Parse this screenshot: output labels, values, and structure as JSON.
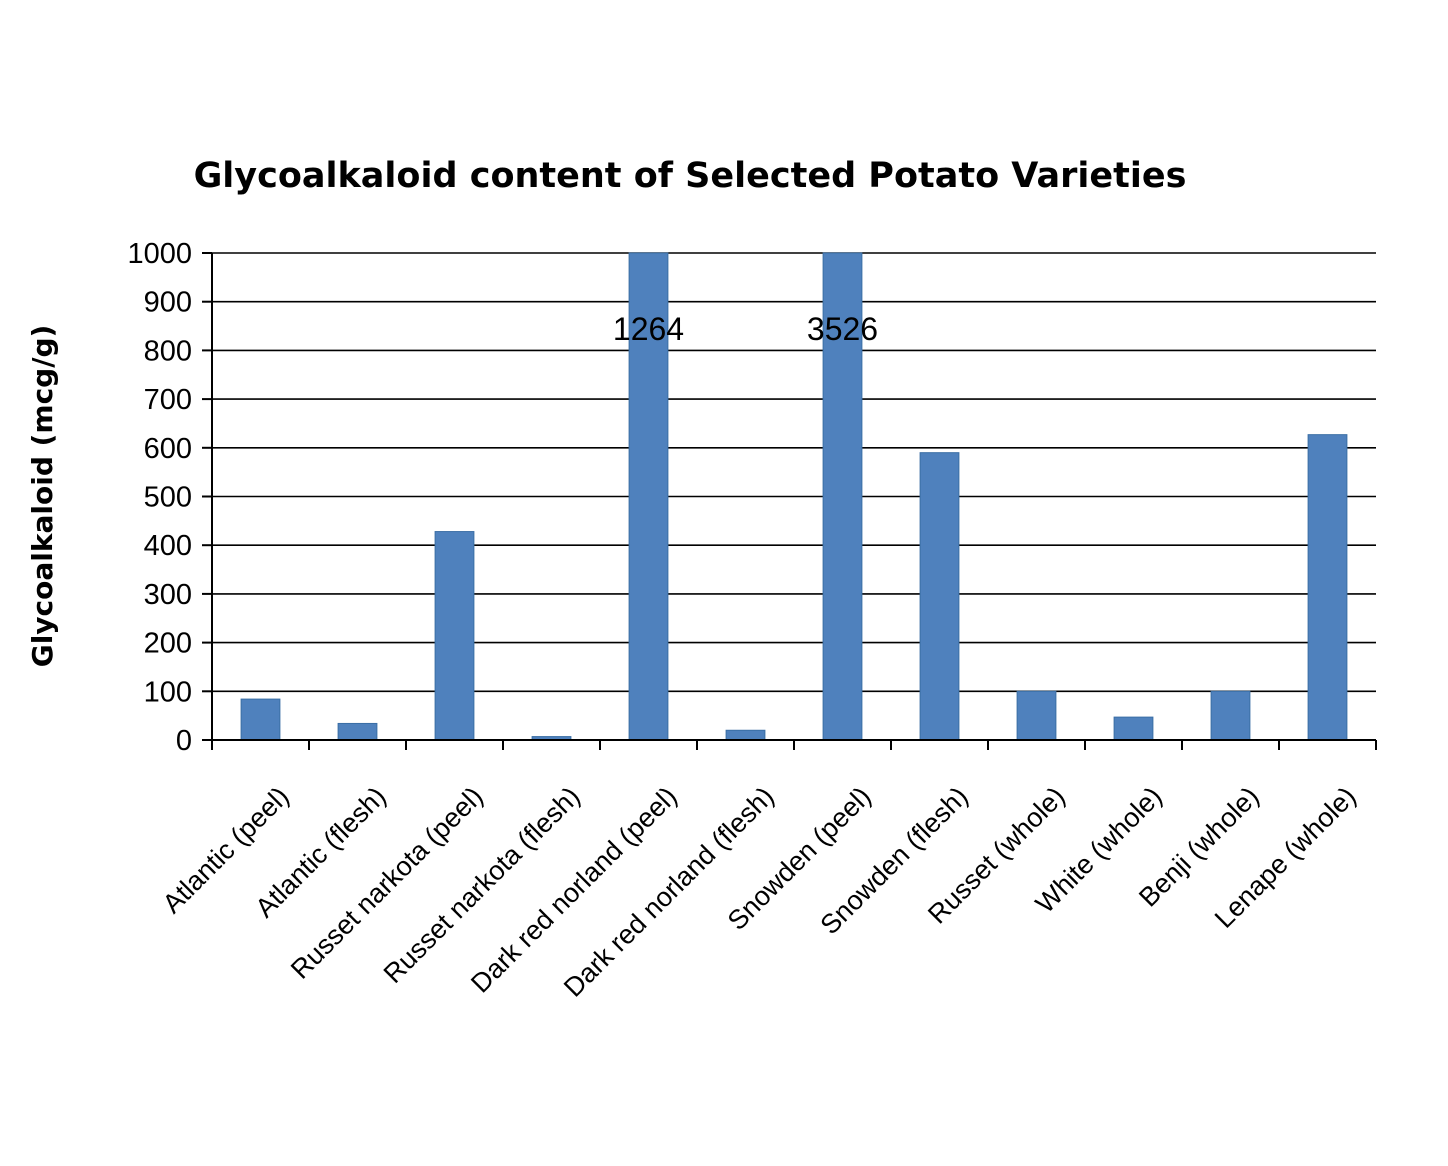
{
  "chart_data": {
    "type": "bar",
    "title": "Glycoalkaloid content of Selected Potato Varieties",
    "xlabel": "",
    "ylabel": "Glycoalkaloid (mcg/g)",
    "ylim": [
      0,
      1000
    ],
    "yticks": [
      0,
      100,
      200,
      300,
      400,
      500,
      600,
      700,
      800,
      900,
      1000
    ],
    "grid": true,
    "categories": [
      "Atlantic (peel)",
      "Atlantic (flesh)",
      "Russet narkota (peel)",
      "Russet narkota (flesh)",
      "Dark red norland (peel)",
      "Dark red norland (flesh)",
      "Snowden (peel)",
      "Snowden (flesh)",
      "Russet (whole)",
      "White (whole)",
      "Benji (whole)",
      "Lenape (whole)"
    ],
    "values": [
      84,
      34,
      428,
      7,
      1264,
      20,
      3526,
      590,
      100,
      47,
      100,
      627
    ],
    "data_labels": [
      "",
      "",
      "",
      "",
      "1264",
      "",
      "3526",
      "",
      "",
      "",
      "",
      ""
    ],
    "colors": {
      "bar": "#4f81bd"
    }
  }
}
